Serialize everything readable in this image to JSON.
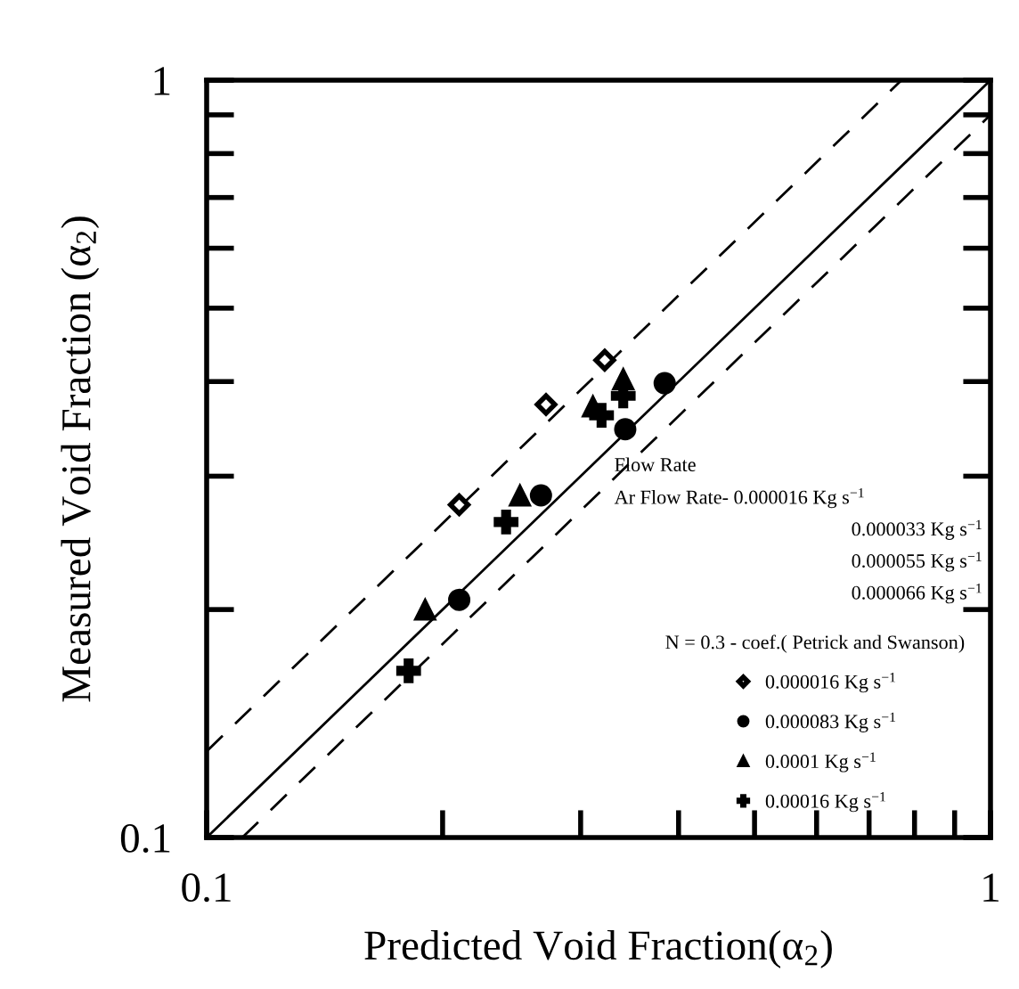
{
  "chart_data": {
    "type": "scatter",
    "xlabel": "Predicted Void Fraction(α$_{2}$)",
    "ylabel": "Measured Void Fraction (α$_{2}$)",
    "xlim": [
      0.1,
      1
    ],
    "ylim": [
      0.1,
      1
    ],
    "log": "xy",
    "xticks": [
      0.1,
      {
        "value": 0.2,
        "label": null
      },
      {
        "value": 0.3,
        "label": null
      },
      {
        "value": 0.4,
        "label": null
      },
      {
        "value": 0.5,
        "label": null
      },
      {
        "value": 0.6,
        "label": null
      },
      {
        "value": 0.7,
        "label": null
      },
      {
        "value": 0.8,
        "label": null
      },
      {
        "value": 0.9,
        "label": null
      },
      1
    ],
    "yticks": [
      0.1,
      {
        "value": 0.2,
        "label": null
      },
      {
        "value": 0.3,
        "label": null
      },
      {
        "value": 0.4,
        "label": null
      },
      {
        "value": 0.5,
        "label": null
      },
      {
        "value": 0.6,
        "label": null
      },
      {
        "value": 0.7,
        "label": null
      },
      {
        "value": 0.8,
        "label": null
      },
      {
        "value": 0.9,
        "label": null
      },
      1
    ],
    "grid": false,
    "legend": "bottom right",
    "legend_title": "N = 0.3 - coef.( Petrick and Swanson)",
    "annotations": [
      "Flow Rate",
      "Ar Flow Rate- 0.000016 Kg s$^{−1}$",
      "0.000033 Kg s$^{−1}$",
      "0.000055 Kg s$^{−1}$",
      "0.000066 Kg s$^{−1}$"
    ],
    "series": [
      {
        "name": "0.000016 Kg s$^{−1}$",
        "color": "#000000",
        "marker": "diamond",
        "x": [
          0.21,
          0.271,
          0.322
        ],
        "values": [
          0.275,
          0.373,
          0.427
        ]
      },
      {
        "name": "0.000083 Kg s$^{−1}$",
        "color": "#000000",
        "marker": "circle",
        "x": [
          0.21,
          0.267,
          0.342,
          0.384
        ],
        "values": [
          0.206,
          0.283,
          0.346,
          0.398
        ]
      },
      {
        "name": "0.0001 Kg s$^{−1}$",
        "color": "#000000",
        "marker": "triangle",
        "x": [
          0.19,
          0.251,
          0.311,
          0.34
        ],
        "values": [
          0.2,
          0.283,
          0.371,
          0.403
        ]
      },
      {
        "name": "0.00016 Kg s$^{−1}$",
        "color": "#000000",
        "marker": "cross",
        "x": [
          0.181,
          0.241,
          0.319,
          0.34
        ],
        "values": [
          0.166,
          0.261,
          0.361,
          0.383
        ]
      },
      {
        "type": "line",
        "color": "#000000",
        "line_style": "solid",
        "marker": "none",
        "x": [
          0.1,
          1
        ],
        "values": [
          0.1,
          1
        ]
      },
      {
        "type": "line",
        "color": "#000000",
        "line_style": "dashed",
        "marker": "none",
        "x": [
          0.1,
          0.77
        ],
        "values": [
          0.13,
          1
        ]
      },
      {
        "type": "line",
        "color": "#000000",
        "line_style": "dashed",
        "marker": "none",
        "x": [
          0.111,
          1
        ],
        "values": [
          0.1,
          0.9
        ]
      }
    ]
  }
}
